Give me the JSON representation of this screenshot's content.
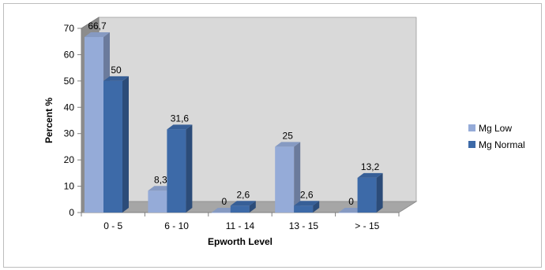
{
  "chart_data": {
    "type": "bar",
    "categories": [
      "0 - 5",
      "6 - 10",
      "11 - 14",
      "13 - 15",
      "> - 15"
    ],
    "series": [
      {
        "name": "Mg Low",
        "values": [
          66.7,
          8.3,
          0,
          25,
          0
        ],
        "labels": [
          "66,7",
          "8,3",
          "0",
          "25",
          "0"
        ],
        "color": "#95abd8"
      },
      {
        "name": "Mg Normal",
        "values": [
          50,
          31.6,
          2.6,
          2.6,
          13.2
        ],
        "labels": [
          "50",
          "31,6",
          "2,6",
          "2,6",
          "13,2"
        ],
        "color": "#3d6aa8"
      }
    ],
    "xlabel": "Epworth Level",
    "ylabel": "Percent %",
    "ylim": [
      0,
      70
    ],
    "yticks": [
      0,
      10,
      20,
      30,
      40,
      50,
      60,
      70
    ],
    "grid": false,
    "three_d": true,
    "legend": "right",
    "wall_color": "#d9d9d9",
    "floor_color": "#a6a6a6"
  }
}
